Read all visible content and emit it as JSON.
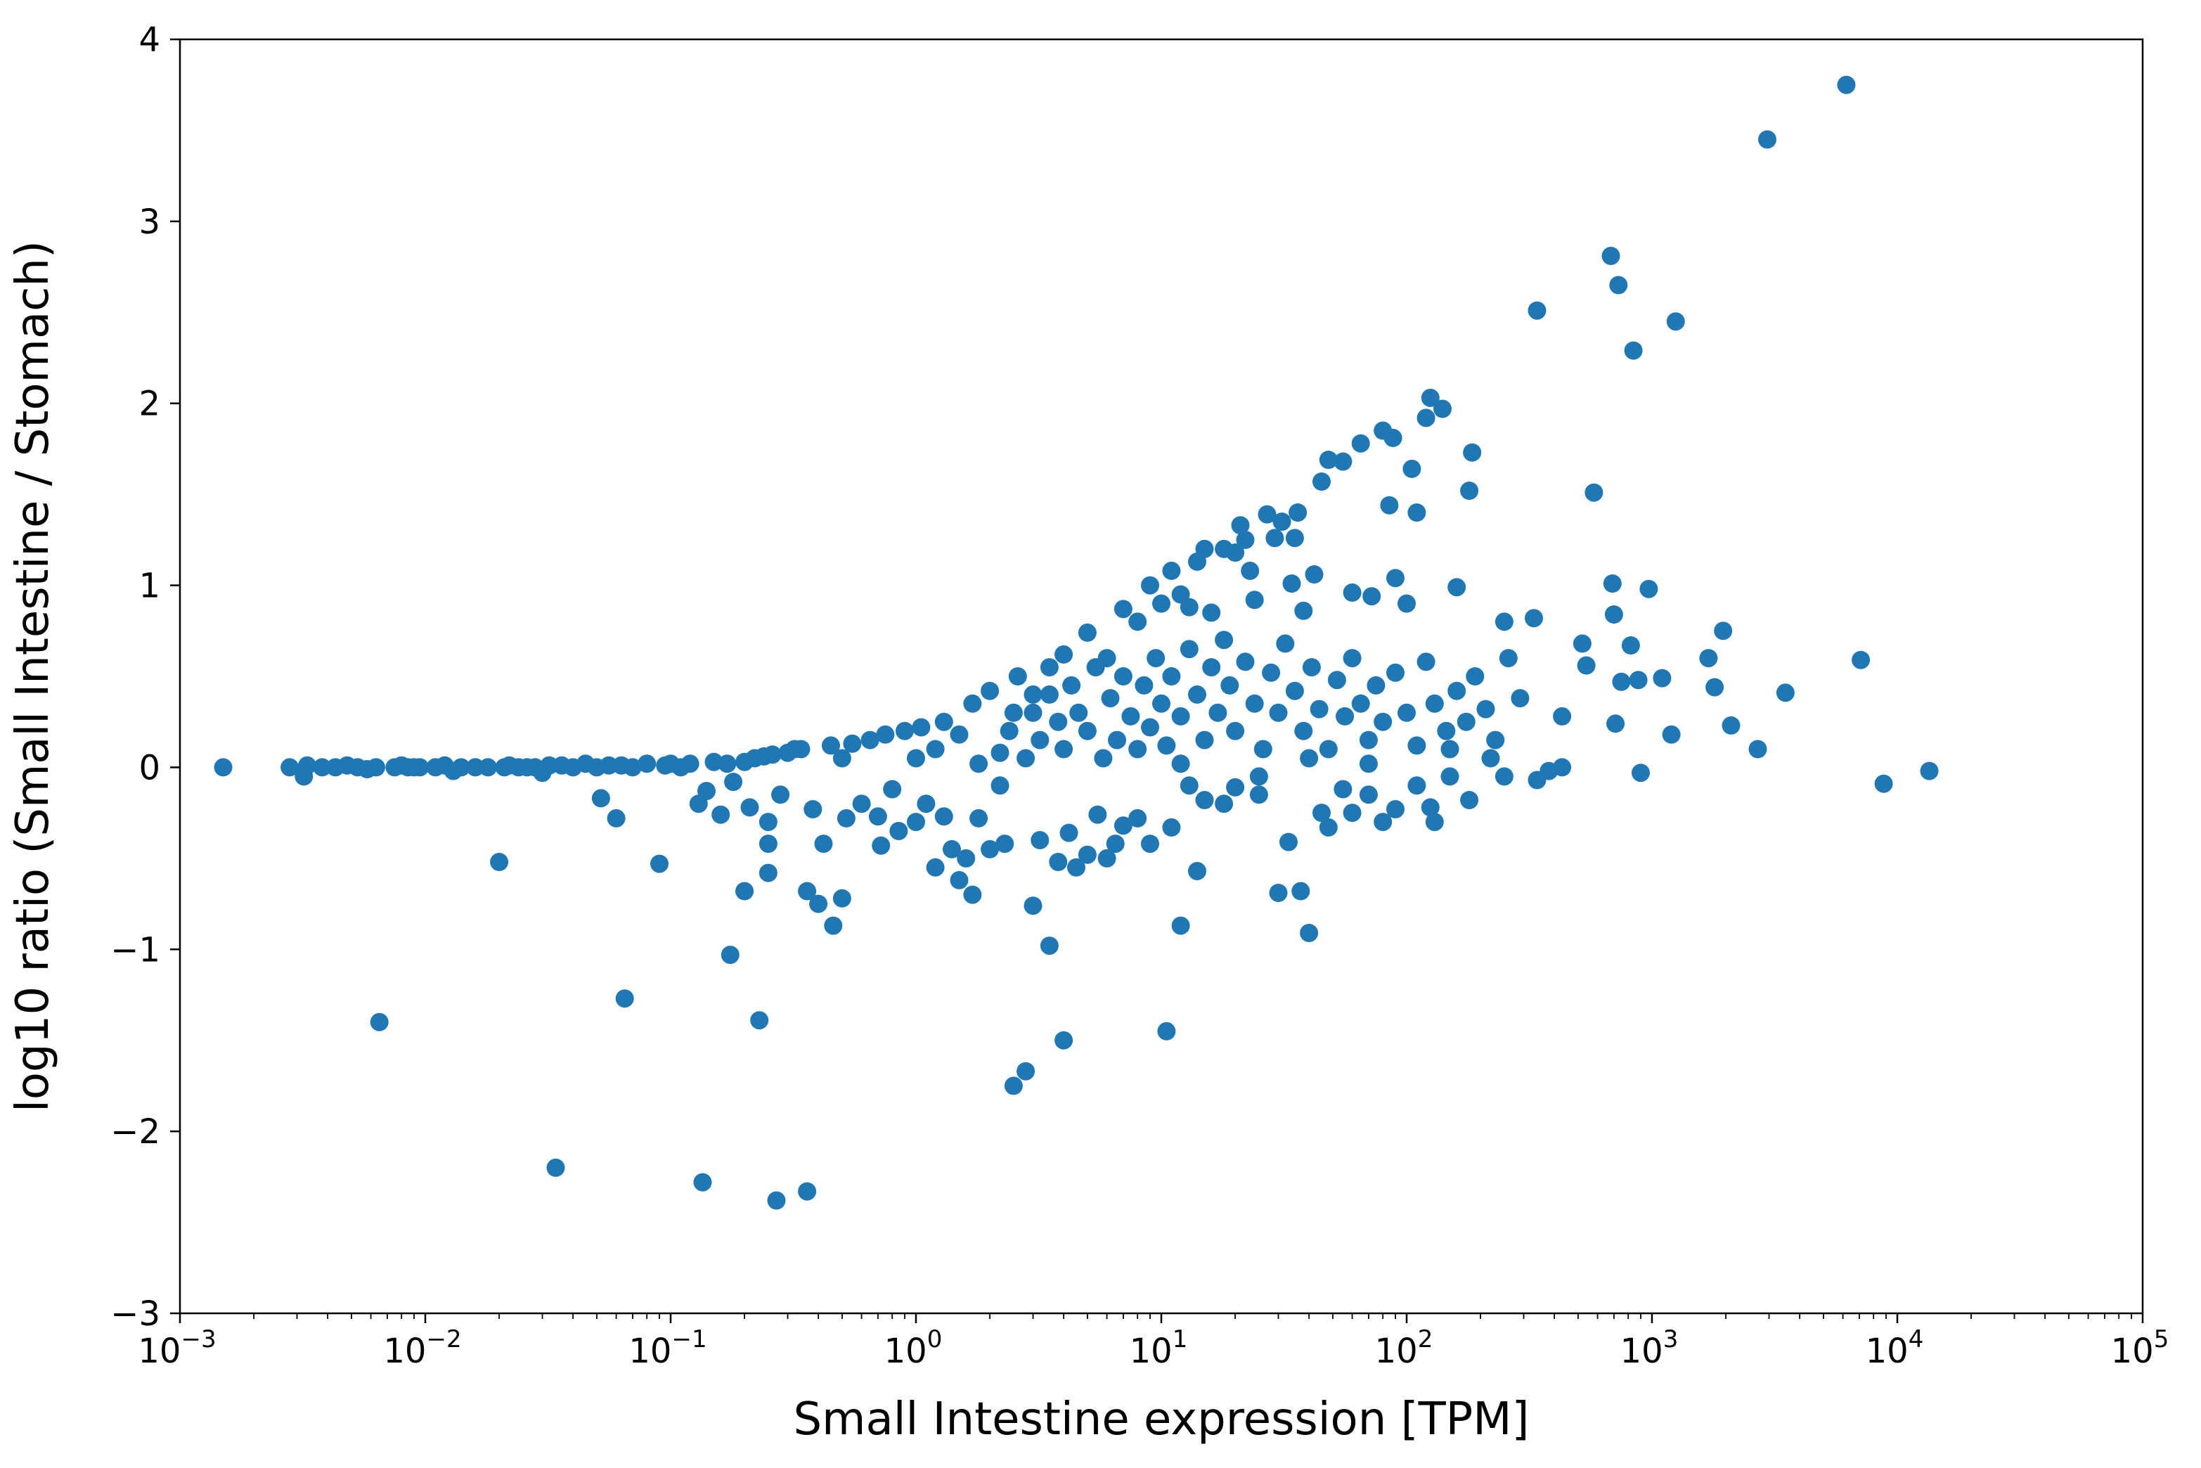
{
  "chart_data": {
    "type": "scatter",
    "title": "",
    "xlabel": "Small Intestine expression [TPM]",
    "ylabel": "log10 ratio (Small Intestine / Stomach)",
    "xscale": "log",
    "xlim": [
      0.001,
      100000
    ],
    "ylim": [
      -3,
      4
    ],
    "grid": false,
    "legend": "none",
    "marker_color": "#1f77b4",
    "x_ticks": [
      {
        "value": 0.001,
        "base": "10",
        "exp": "−3"
      },
      {
        "value": 0.01,
        "base": "10",
        "exp": "−2"
      },
      {
        "value": 0.1,
        "base": "10",
        "exp": "−1"
      },
      {
        "value": 1,
        "base": "10",
        "exp": "0"
      },
      {
        "value": 10,
        "base": "10",
        "exp": "1"
      },
      {
        "value": 100,
        "base": "10",
        "exp": "2"
      },
      {
        "value": 1000,
        "base": "10",
        "exp": "3"
      },
      {
        "value": 10000,
        "base": "10",
        "exp": "4"
      },
      {
        "value": 100000,
        "base": "10",
        "exp": "5"
      }
    ],
    "y_ticks": [
      {
        "value": -3,
        "label": "−3"
      },
      {
        "value": -2,
        "label": "−2"
      },
      {
        "value": -1,
        "label": "−1"
      },
      {
        "value": 0,
        "label": "0"
      },
      {
        "value": 1,
        "label": "1"
      },
      {
        "value": 2,
        "label": "2"
      },
      {
        "value": 3,
        "label": "3"
      },
      {
        "value": 4,
        "label": "4"
      }
    ],
    "points": [
      [
        0.0015,
        0.0
      ],
      [
        0.0028,
        0.0
      ],
      [
        0.0032,
        -0.05
      ],
      [
        0.0033,
        0.01
      ],
      [
        0.0038,
        0.0
      ],
      [
        0.0043,
        0.0
      ],
      [
        0.0048,
        0.01
      ],
      [
        0.0053,
        0.0
      ],
      [
        0.0058,
        -0.01
      ],
      [
        0.0063,
        0.0
      ],
      [
        0.0065,
        -1.4
      ],
      [
        0.0075,
        0.0
      ],
      [
        0.008,
        0.01
      ],
      [
        0.0085,
        0.0
      ],
      [
        0.009,
        0.0
      ],
      [
        0.0095,
        0.0
      ],
      [
        0.011,
        0.0
      ],
      [
        0.012,
        0.01
      ],
      [
        0.013,
        -0.02
      ],
      [
        0.014,
        0.0
      ],
      [
        0.016,
        0.0
      ],
      [
        0.018,
        0.0
      ],
      [
        0.02,
        -0.52
      ],
      [
        0.021,
        0.0
      ],
      [
        0.022,
        0.01
      ],
      [
        0.024,
        0.0
      ],
      [
        0.026,
        0.0
      ],
      [
        0.028,
        0.0
      ],
      [
        0.03,
        -0.03
      ],
      [
        0.032,
        0.01
      ],
      [
        0.034,
        -2.2
      ],
      [
        0.036,
        0.01
      ],
      [
        0.04,
        0.0
      ],
      [
        0.045,
        0.02
      ],
      [
        0.05,
        0.0
      ],
      [
        0.052,
        -0.17
      ],
      [
        0.056,
        0.01
      ],
      [
        0.06,
        -0.28
      ],
      [
        0.063,
        0.01
      ],
      [
        0.065,
        -1.27
      ],
      [
        0.07,
        0.0
      ],
      [
        0.08,
        0.02
      ],
      [
        0.09,
        -0.53
      ],
      [
        0.095,
        0.01
      ],
      [
        0.1,
        0.02
      ],
      [
        0.11,
        0.0
      ],
      [
        0.12,
        0.02
      ],
      [
        0.13,
        -0.2
      ],
      [
        0.135,
        -2.28
      ],
      [
        0.14,
        -0.13
      ],
      [
        0.15,
        0.03
      ],
      [
        0.16,
        -0.26
      ],
      [
        0.17,
        0.02
      ],
      [
        0.175,
        -1.03
      ],
      [
        0.18,
        -0.08
      ],
      [
        0.2,
        0.03
      ],
      [
        0.2,
        -0.68
      ],
      [
        0.21,
        -0.22
      ],
      [
        0.22,
        0.05
      ],
      [
        0.23,
        -1.39
      ],
      [
        0.24,
        0.06
      ],
      [
        0.25,
        -0.3
      ],
      [
        0.25,
        -0.42
      ],
      [
        0.26,
        0.07
      ],
      [
        0.25,
        -0.58
      ],
      [
        0.27,
        -2.38
      ],
      [
        0.28,
        -0.15
      ],
      [
        0.3,
        0.08
      ],
      [
        0.32,
        0.1
      ],
      [
        0.34,
        0.1
      ],
      [
        0.36,
        -0.68
      ],
      [
        0.36,
        -2.33
      ],
      [
        0.38,
        -0.23
      ],
      [
        0.4,
        -0.75
      ],
      [
        0.42,
        -0.42
      ],
      [
        0.45,
        0.12
      ],
      [
        0.46,
        -0.87
      ],
      [
        0.5,
        -0.72
      ],
      [
        0.52,
        -0.28
      ],
      [
        0.55,
        0.13
      ],
      [
        0.6,
        -0.2
      ],
      [
        0.65,
        0.15
      ],
      [
        0.7,
        -0.27
      ],
      [
        0.72,
        -0.43
      ],
      [
        0.75,
        0.18
      ],
      [
        0.8,
        -0.12
      ],
      [
        0.85,
        -0.35
      ],
      [
        0.9,
        0.2
      ],
      [
        1.0,
        -0.3
      ],
      [
        1.05,
        0.22
      ],
      [
        1.1,
        -0.2
      ],
      [
        1.2,
        -0.55
      ],
      [
        1.3,
        -0.27
      ],
      [
        1.4,
        -0.45
      ],
      [
        1.5,
        -0.62
      ],
      [
        1.6,
        -0.5
      ],
      [
        1.7,
        -0.7
      ],
      [
        1.8,
        -0.28
      ],
      [
        2.0,
        -0.45
      ],
      [
        2.2,
        -0.1
      ],
      [
        2.3,
        -0.42
      ],
      [
        2.5,
        -1.75
      ],
      [
        2.8,
        -1.67
      ],
      [
        3.0,
        -0.76
      ],
      [
        3.2,
        -0.4
      ],
      [
        3.5,
        -0.98
      ],
      [
        3.8,
        -0.52
      ],
      [
        4.0,
        -1.5
      ],
      [
        4.2,
        -0.36
      ],
      [
        4.5,
        -0.55
      ],
      [
        5.0,
        -0.48
      ],
      [
        5.5,
        -0.26
      ],
      [
        6.0,
        -0.5
      ],
      [
        6.5,
        -0.42
      ],
      [
        7.0,
        -0.32
      ],
      [
        8.0,
        -0.28
      ],
      [
        9.0,
        -0.42
      ],
      [
        10.5,
        -1.45
      ],
      [
        11.0,
        -0.33
      ],
      [
        12.0,
        -0.87
      ],
      [
        13.0,
        -0.1
      ],
      [
        14.0,
        -0.57
      ],
      [
        15.0,
        -0.18
      ],
      [
        18.0,
        -0.2
      ],
      [
        20.0,
        -0.11
      ],
      [
        25.0,
        -0.15
      ],
      [
        30.0,
        -0.69
      ],
      [
        33.0,
        -0.41
      ],
      [
        37.0,
        -0.68
      ],
      [
        40.0,
        -0.91
      ],
      [
        45.0,
        -0.25
      ],
      [
        48.0,
        -0.33
      ],
      [
        55.0,
        -0.12
      ],
      [
        60.0,
        -0.25
      ],
      [
        70.0,
        -0.15
      ],
      [
        80.0,
        -0.3
      ],
      [
        90.0,
        -0.23
      ],
      [
        110.0,
        -0.1
      ],
      [
        125.0,
        -0.22
      ],
      [
        130.0,
        -0.3
      ],
      [
        150.0,
        -0.05
      ],
      [
        180.0,
        -0.18
      ],
      [
        220.0,
        0.05
      ],
      [
        250.0,
        -0.05
      ],
      [
        340.0,
        -0.07
      ],
      [
        380.0,
        -0.02
      ],
      [
        430.0,
        0.0
      ],
      [
        2.5,
        0.3
      ],
      [
        3.0,
        0.4
      ],
      [
        3.5,
        0.55
      ],
      [
        4.0,
        0.62
      ],
      [
        5.0,
        0.74
      ],
      [
        6.0,
        0.6
      ],
      [
        7.0,
        0.87
      ],
      [
        8.0,
        0.8
      ],
      [
        9.0,
        1.0
      ],
      [
        10.0,
        0.9
      ],
      [
        11.0,
        1.08
      ],
      [
        12.0,
        0.95
      ],
      [
        13.0,
        0.88
      ],
      [
        14.0,
        1.13
      ],
      [
        15.0,
        1.2
      ],
      [
        16.0,
        0.85
      ],
      [
        18.0,
        1.2
      ],
      [
        20.0,
        1.18
      ],
      [
        21.0,
        1.33
      ],
      [
        22.0,
        1.25
      ],
      [
        23.0,
        1.08
      ],
      [
        24.0,
        0.92
      ],
      [
        27.0,
        1.39
      ],
      [
        29.0,
        1.26
      ],
      [
        31.0,
        1.35
      ],
      [
        34.0,
        1.01
      ],
      [
        35.0,
        1.26
      ],
      [
        36.0,
        1.4
      ],
      [
        38.0,
        0.86
      ],
      [
        42.0,
        1.06
      ],
      [
        45.0,
        1.57
      ],
      [
        48.0,
        1.69
      ],
      [
        55.0,
        1.68
      ],
      [
        60.0,
        0.96
      ],
      [
        65.0,
        1.78
      ],
      [
        72.0,
        0.94
      ],
      [
        80.0,
        1.85
      ],
      [
        85.0,
        1.44
      ],
      [
        88.0,
        1.81
      ],
      [
        90.0,
        1.04
      ],
      [
        100.0,
        0.9
      ],
      [
        105.0,
        1.64
      ],
      [
        110.0,
        1.4
      ],
      [
        120.0,
        1.92
      ],
      [
        125.0,
        2.03
      ],
      [
        140.0,
        1.97
      ],
      [
        160.0,
        0.99
      ],
      [
        180.0,
        1.52
      ],
      [
        185.0,
        1.73
      ],
      [
        250.0,
        0.8
      ],
      [
        330.0,
        0.82
      ],
      [
        340.0,
        2.51
      ],
      [
        430.0,
        0.28
      ],
      [
        520.0,
        0.68
      ],
      [
        540.0,
        0.56
      ],
      [
        580.0,
        1.51
      ],
      [
        680.0,
        2.81
      ],
      [
        690.0,
        1.01
      ],
      [
        700.0,
        0.84
      ],
      [
        710.0,
        0.24
      ],
      [
        730.0,
        2.65
      ],
      [
        750.0,
        0.47
      ],
      [
        820.0,
        0.67
      ],
      [
        840.0,
        2.29
      ],
      [
        880.0,
        0.48
      ],
      [
        900.0,
        -0.03
      ],
      [
        970.0,
        0.98
      ],
      [
        1100.0,
        0.49
      ],
      [
        1200.0,
        0.18
      ],
      [
        1250.0,
        2.45
      ],
      [
        1700.0,
        0.6
      ],
      [
        1800.0,
        0.44
      ],
      [
        1950.0,
        0.75
      ],
      [
        2100.0,
        0.23
      ],
      [
        2700.0,
        0.1
      ],
      [
        2950.0,
        3.45
      ],
      [
        3500.0,
        0.41
      ],
      [
        6200.0,
        3.75
      ],
      [
        7100.0,
        0.59
      ],
      [
        8800.0,
        -0.09
      ],
      [
        13500.0,
        -0.02
      ],
      [
        1.0,
        0.05
      ],
      [
        1.2,
        0.1
      ],
      [
        1.3,
        0.25
      ],
      [
        1.5,
        0.18
      ],
      [
        1.7,
        0.35
      ],
      [
        1.8,
        0.02
      ],
      [
        2.0,
        0.42
      ],
      [
        2.2,
        0.08
      ],
      [
        2.4,
        0.2
      ],
      [
        2.6,
        0.5
      ],
      [
        2.8,
        0.05
      ],
      [
        3.0,
        0.3
      ],
      [
        3.2,
        0.15
      ],
      [
        3.5,
        0.4
      ],
      [
        3.8,
        0.25
      ],
      [
        4.0,
        0.1
      ],
      [
        4.3,
        0.45
      ],
      [
        4.6,
        0.3
      ],
      [
        5.0,
        0.2
      ],
      [
        5.4,
        0.55
      ],
      [
        5.8,
        0.05
      ],
      [
        6.2,
        0.38
      ],
      [
        6.6,
        0.15
      ],
      [
        7.0,
        0.5
      ],
      [
        7.5,
        0.28
      ],
      [
        8.0,
        0.1
      ],
      [
        8.5,
        0.45
      ],
      [
        9.0,
        0.22
      ],
      [
        9.5,
        0.6
      ],
      [
        10.0,
        0.35
      ],
      [
        10.5,
        0.12
      ],
      [
        11.0,
        0.5
      ],
      [
        12.0,
        0.28
      ],
      [
        13.0,
        0.65
      ],
      [
        14.0,
        0.4
      ],
      [
        15.0,
        0.15
      ],
      [
        16.0,
        0.55
      ],
      [
        17.0,
        0.3
      ],
      [
        18.0,
        0.7
      ],
      [
        19.0,
        0.45
      ],
      [
        20.0,
        0.2
      ],
      [
        22.0,
        0.58
      ],
      [
        24.0,
        0.35
      ],
      [
        26.0,
        0.1
      ],
      [
        28.0,
        0.52
      ],
      [
        30.0,
        0.3
      ],
      [
        32.0,
        0.68
      ],
      [
        35.0,
        0.42
      ],
      [
        38.0,
        0.2
      ],
      [
        41.0,
        0.55
      ],
      [
        44.0,
        0.32
      ],
      [
        48.0,
        0.1
      ],
      [
        52.0,
        0.48
      ],
      [
        56.0,
        0.28
      ],
      [
        60.0,
        0.6
      ],
      [
        65.0,
        0.35
      ],
      [
        70.0,
        0.15
      ],
      [
        75.0,
        0.45
      ],
      [
        80.0,
        0.25
      ],
      [
        90.0,
        0.52
      ],
      [
        100.0,
        0.3
      ],
      [
        110.0,
        0.12
      ],
      [
        120.0,
        0.58
      ],
      [
        130.0,
        0.35
      ],
      [
        145.0,
        0.2
      ],
      [
        160.0,
        0.42
      ],
      [
        175.0,
        0.25
      ],
      [
        190.0,
        0.5
      ],
      [
        210.0,
        0.32
      ],
      [
        230.0,
        0.15
      ],
      [
        260.0,
        0.6
      ],
      [
        290.0,
        0.38
      ],
      [
        12.0,
        0.02
      ],
      [
        25.0,
        -0.05
      ],
      [
        40.0,
        0.05
      ],
      [
        70.0,
        0.02
      ],
      [
        150.0,
        0.1
      ],
      [
        0.5,
        0.05
      ]
    ]
  }
}
